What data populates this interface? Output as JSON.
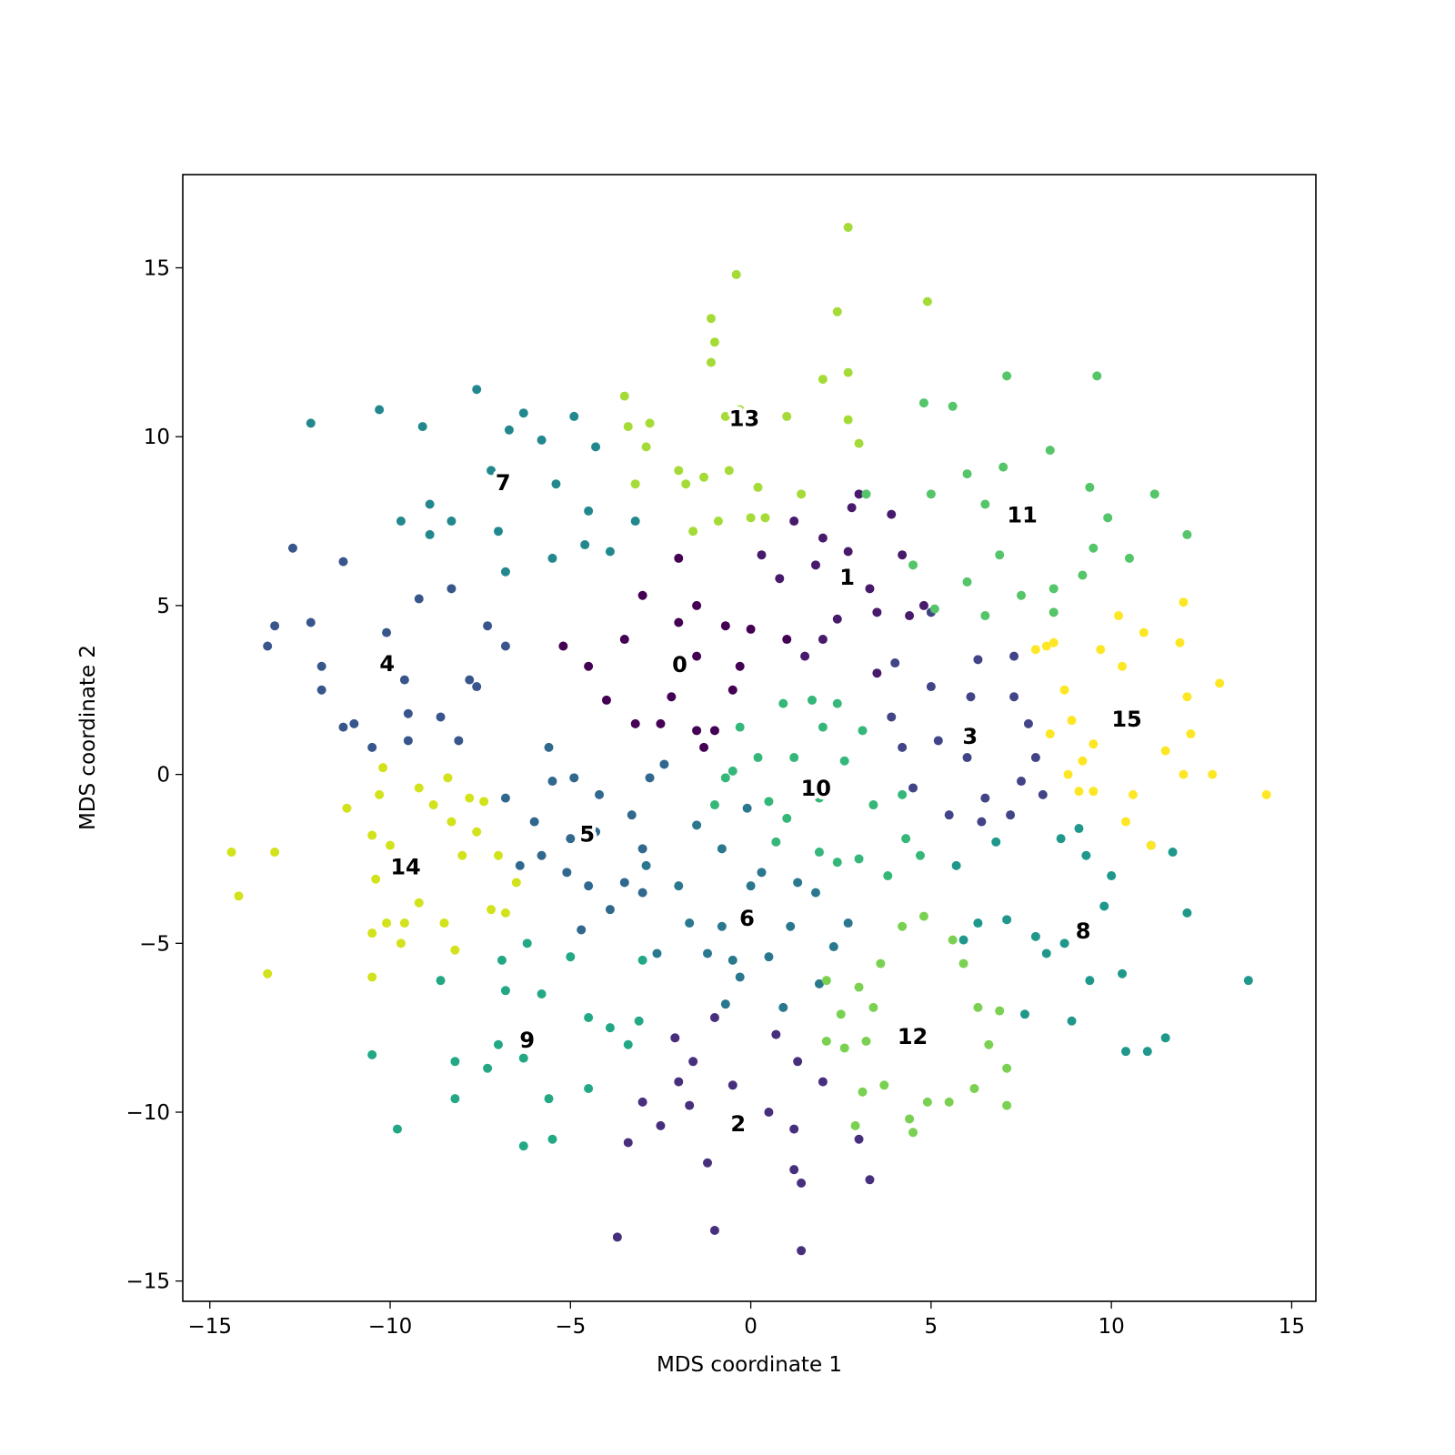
{
  "chart_data": {
    "type": "scatter",
    "xlabel": "MDS coordinate 1",
    "ylabel": "MDS coordinate 2",
    "xlim": [
      -15.75,
      15.67
    ],
    "ylim": [
      -15.6,
      17.76
    ],
    "xticks": [
      {
        "value": -15,
        "label": "−15"
      },
      {
        "value": -10,
        "label": "−10"
      },
      {
        "value": -5,
        "label": "−5"
      },
      0,
      5,
      10,
      15
    ],
    "yticks": [
      {
        "value": -15,
        "label": "−15"
      },
      {
        "value": -10,
        "label": "−10"
      },
      {
        "value": -5,
        "label": "−5"
      },
      0,
      5,
      10,
      15
    ],
    "grid": false,
    "series": [
      {
        "name": "0",
        "color": "#440154",
        "x": [
          -3.2,
          -4,
          -2.5,
          -1.5,
          -1,
          -2,
          -1.5,
          -0.5,
          0,
          1,
          -3.5,
          -5.2,
          -2,
          -1.5,
          -0.7,
          -0.3,
          -4.5,
          -3,
          -2.2,
          -1.3
        ],
        "y": [
          1.5,
          2.2,
          1.5,
          1.3,
          1.3,
          4.5,
          3.5,
          2.5,
          4.3,
          4,
          4,
          3.8,
          6.4,
          5,
          4.4,
          3.2,
          3.2,
          5.3,
          2.3,
          0.8
        ]
      },
      {
        "name": "1",
        "color": "#481a6c",
        "x": [
          0.3,
          1.2,
          2,
          3,
          2.8,
          1.8,
          3.3,
          4.2,
          4.4,
          2,
          3.5,
          0.8,
          3.9,
          2.7,
          4.8,
          1.5,
          3.5,
          2.4
        ],
        "y": [
          6.5,
          7.5,
          7,
          8.3,
          7.9,
          6.2,
          5.5,
          6.5,
          4.7,
          4,
          4.8,
          5.8,
          7.7,
          6.6,
          5,
          3.5,
          3,
          4.6
        ]
      },
      {
        "name": "2",
        "color": "#472f7d",
        "x": [
          -3.7,
          -1,
          1.4,
          1.2,
          1.4,
          3.3,
          -1.2,
          -2.5,
          -3.4,
          1.2,
          -1.6,
          -2,
          -0.5,
          0.7,
          1.3,
          -3,
          2,
          3,
          -1,
          -2.1,
          0.5,
          -1.7
        ],
        "y": [
          -13.7,
          -13.5,
          -14.1,
          -11.7,
          -12.1,
          -12,
          -11.5,
          -10.4,
          -10.9,
          -10.5,
          -8.5,
          -9.1,
          -9.2,
          -7.7,
          -8.5,
          -9.7,
          -9.1,
          -10.8,
          -7.2,
          -7.8,
          -10,
          -9.8
        ]
      },
      {
        "name": "3",
        "color": "#414487",
        "x": [
          4,
          5,
          6.3,
          7.3,
          7.3,
          6.1,
          5.2,
          6,
          7.7,
          7.9,
          7.5,
          6.5,
          5.5,
          6.4,
          4.2,
          3.9,
          5,
          4.5,
          8.1,
          7.2
        ],
        "y": [
          3.3,
          2.6,
          3.4,
          3.5,
          2.3,
          2.3,
          1,
          0.5,
          1.5,
          0.5,
          -0.2,
          -0.7,
          -1.2,
          -1.4,
          0.8,
          1.7,
          4.8,
          -0.4,
          -0.6,
          -1.2
        ]
      },
      {
        "name": "4",
        "color": "#39568c",
        "x": [
          -13.4,
          -13.2,
          -12.7,
          -11.3,
          -11.9,
          -11.3,
          -11,
          -10.5,
          -10.1,
          -9.2,
          -8.3,
          -9.6,
          -8.6,
          -9.5,
          -7.8,
          -7.6,
          -8.1,
          -7.3,
          -6.8,
          -11.9,
          -12.2,
          -9.5
        ],
        "y": [
          3.8,
          4.4,
          6.7,
          6.3,
          3.2,
          1.4,
          1.5,
          0.8,
          4.2,
          5.2,
          5.5,
          2.8,
          1.7,
          1.8,
          2.8,
          2.6,
          1,
          4.4,
          3.8,
          2.5,
          4.5,
          1
        ]
      },
      {
        "name": "5",
        "color": "#31688e",
        "x": [
          -5.5,
          -4.9,
          -4.2,
          -3.3,
          -2.8,
          -5.8,
          -5.1,
          -4.5,
          -3.5,
          -3,
          -6,
          -6.4,
          -5,
          -3.9,
          -4.7,
          -3,
          -6.8,
          -2.4,
          -5.6,
          -4.3
        ],
        "y": [
          -0.2,
          -0.1,
          -0.6,
          -1.2,
          -0.1,
          -2.4,
          -2.9,
          -3.3,
          -3.2,
          -2.2,
          -1.4,
          -2.7,
          -1.9,
          -4,
          -4.6,
          -3.5,
          -0.7,
          0.3,
          0.8,
          -1.7
        ]
      },
      {
        "name": "6",
        "color": "#2a788e",
        "x": [
          -1.5,
          -0.8,
          0,
          0.3,
          -0.8,
          -1.2,
          -0.5,
          -0.3,
          0.5,
          1.1,
          1.8,
          2.7,
          -2,
          -1.7,
          -2.6,
          0.9,
          1.9,
          -0.1,
          -2.9,
          1.3,
          -0.7,
          2.3
        ],
        "y": [
          -1.5,
          -2.2,
          -3.3,
          -2.9,
          -4.5,
          -5.3,
          -5.5,
          -6,
          -5.4,
          -4.5,
          -3.5,
          -4.4,
          -3.3,
          -4.4,
          -5.3,
          -6.9,
          -6.2,
          -1,
          -2.7,
          -3.2,
          -6.8,
          -5.1
        ]
      },
      {
        "name": "7",
        "color": "#23888e",
        "x": [
          -12.2,
          -10.3,
          -9.1,
          -7.6,
          -5.8,
          -4.9,
          -6.3,
          -6.7,
          -8.9,
          -8.3,
          -7.2,
          -5.4,
          -4.5,
          -3.9,
          -6.8,
          -5.5,
          -7,
          -4.6,
          -8.9,
          -9.7,
          -3.2,
          -4.3
        ],
        "y": [
          10.4,
          10.8,
          10.3,
          11.4,
          9.9,
          10.6,
          10.7,
          10.2,
          7.1,
          7.5,
          9,
          8.6,
          7.8,
          6.6,
          6,
          6.4,
          7.2,
          6.8,
          8,
          7.5,
          7.5,
          9.7
        ]
      },
      {
        "name": "8",
        "color": "#1f988b",
        "x": [
          9.1,
          9.3,
          10,
          11.1,
          11.7,
          12.1,
          13.8,
          11.5,
          10.4,
          11,
          9.8,
          9.4,
          8.9,
          7.6,
          7.1,
          6.3,
          5.7,
          6.8,
          7.9,
          8.2,
          10.3,
          8.6,
          5.9,
          8.7
        ],
        "y": [
          -1.6,
          -2.4,
          -3,
          -2.1,
          -2.3,
          -4.1,
          -6.1,
          -7.8,
          -8.2,
          -8.2,
          -3.9,
          -6.1,
          -7.3,
          -7.1,
          -4.3,
          -4.4,
          -2.7,
          -2,
          -4.8,
          -5.3,
          -5.9,
          -1.9,
          -4.9,
          -5
        ]
      },
      {
        "name": "9",
        "color": "#22a884",
        "x": [
          -6.2,
          -5,
          -5.8,
          -4.5,
          -3.9,
          -3.4,
          -3.1,
          -6.9,
          -7,
          -7.3,
          -6.3,
          -5.6,
          -5.5,
          -6.3,
          -8.2,
          -8.2,
          -9.8,
          -10.5,
          -8.6,
          -4.5,
          -3,
          -6.8
        ],
        "y": [
          -5,
          -5.4,
          -6.5,
          -7.2,
          -7.5,
          -8,
          -7.3,
          -5.5,
          -8,
          -8.7,
          -8.4,
          -9.6,
          -10.8,
          -11,
          -9.6,
          -8.5,
          -10.5,
          -8.3,
          -6.1,
          -9.3,
          -5.5,
          -6.4
        ]
      },
      {
        "name": "10",
        "color": "#35b779",
        "x": [
          0.9,
          1.7,
          2.4,
          3.1,
          2,
          1.2,
          0.2,
          -0.5,
          -1,
          0.5,
          1.9,
          3.4,
          4.2,
          4.3,
          3,
          1.9,
          1,
          0.7,
          -0.7,
          2.4,
          3.8,
          4.7,
          -0.3,
          2.6
        ],
        "y": [
          2.1,
          2.2,
          2.1,
          1.3,
          1.4,
          0.5,
          0.5,
          0.1,
          -0.9,
          -0.8,
          -0.7,
          -0.9,
          -0.6,
          -1.9,
          -2.5,
          -2.3,
          -1.3,
          -2,
          -0.1,
          -2.6,
          -3,
          -2.4,
          1.4,
          0.4
        ]
      },
      {
        "name": "11",
        "color": "#54c568",
        "x": [
          4.8,
          5.6,
          7.1,
          9.6,
          8.3,
          7,
          6,
          5,
          6.5,
          9.4,
          9.9,
          11.2,
          12.1,
          10.5,
          9.5,
          9.2,
          8.4,
          8.4,
          7.5,
          6.5,
          5.1,
          4.5,
          6,
          6.9,
          3.2
        ],
        "y": [
          11,
          10.9,
          11.8,
          11.8,
          9.6,
          9.1,
          8.9,
          8.3,
          8,
          8.5,
          7.6,
          8.3,
          7.1,
          6.4,
          6.7,
          5.9,
          5.5,
          4.8,
          5.3,
          4.7,
          4.9,
          6.2,
          5.7,
          6.5,
          8.3
        ]
      },
      {
        "name": "12",
        "color": "#7ad151",
        "x": [
          2.1,
          2.5,
          2.1,
          2.6,
          3.2,
          3,
          3.6,
          4.2,
          4.8,
          5.6,
          5.9,
          6.3,
          6.9,
          6.6,
          7.1,
          7.1,
          5.5,
          4.9,
          4.4,
          3.7,
          3.1,
          2.9,
          4.5,
          6.2,
          3.4
        ],
        "y": [
          -6.1,
          -7.1,
          -7.9,
          -8.1,
          -7.9,
          -6.3,
          -5.6,
          -4.5,
          -4.2,
          -4.9,
          -5.6,
          -6.9,
          -7,
          -8,
          -8.7,
          -9.8,
          -9.7,
          -9.7,
          -10.2,
          -9.2,
          -9.4,
          -10.4,
          -10.6,
          -9.3,
          -6.9
        ]
      },
      {
        "name": "13",
        "color": "#a5db36",
        "x": [
          2.7,
          -0.4,
          4.9,
          2.4,
          -1.1,
          -1,
          -1.1,
          2.7,
          2,
          -3.5,
          -0.7,
          -0.3,
          1,
          2.7,
          3,
          -3.4,
          -2.9,
          -2,
          -1.8,
          -1.3,
          -0.6,
          0.2,
          1.4,
          -1.6,
          -0.9,
          0,
          0.4,
          -3.2,
          -2.8
        ],
        "y": [
          16.2,
          14.8,
          14,
          13.7,
          13.5,
          12.8,
          12.2,
          11.9,
          11.7,
          11.2,
          10.6,
          10.8,
          10.6,
          10.5,
          9.8,
          10.3,
          9.7,
          9,
          8.6,
          8.8,
          9,
          8.5,
          8.3,
          7.2,
          7.5,
          7.6,
          7.6,
          8.6,
          10.4
        ]
      },
      {
        "name": "14",
        "color": "#d2e21b",
        "x": [
          -14.4,
          -14.2,
          -13.2,
          -13.4,
          -11.2,
          -10.5,
          -10,
          -10.3,
          -10.2,
          -9.2,
          -8.8,
          -8.4,
          -8.3,
          -7.8,
          -7.4,
          -7.6,
          -8,
          -7,
          -6.5,
          -6.8,
          -7.2,
          -8.5,
          -9.2,
          -10.1,
          -10.5,
          -9.7,
          -10.5,
          -8.2,
          -10.4,
          -9.6
        ],
        "y": [
          -2.3,
          -3.6,
          -2.3,
          -5.9,
          -1,
          -1.8,
          -2.1,
          -0.6,
          0.2,
          -0.4,
          -0.9,
          -0.1,
          -1.4,
          -0.7,
          -0.8,
          -1.7,
          -2.4,
          -2.4,
          -3.2,
          -4.1,
          -4,
          -4.4,
          -3.8,
          -4.4,
          -4.7,
          -5,
          -6,
          -5.2,
          -3.1,
          -4.4
        ]
      },
      {
        "name": "15",
        "color": "#fde725",
        "x": [
          12,
          10.9,
          10.2,
          9.7,
          8.4,
          7.9,
          8.2,
          8.7,
          8.9,
          9.5,
          8.3,
          8.8,
          9.1,
          9.5,
          9.2,
          10.6,
          10.4,
          11.1,
          11.5,
          12,
          12.8,
          14.3,
          13,
          12.1,
          12.2,
          11.9,
          10.3
        ],
        "y": [
          5.1,
          4.2,
          4.7,
          3.7,
          3.9,
          3.7,
          3.8,
          2.5,
          1.6,
          0.9,
          1.2,
          0,
          -0.5,
          -0.5,
          0.4,
          -0.6,
          -1.4,
          -2.1,
          0.7,
          0,
          0,
          -0.6,
          2.7,
          2.3,
          1.2,
          3.9,
          3.2
        ]
      }
    ]
  }
}
